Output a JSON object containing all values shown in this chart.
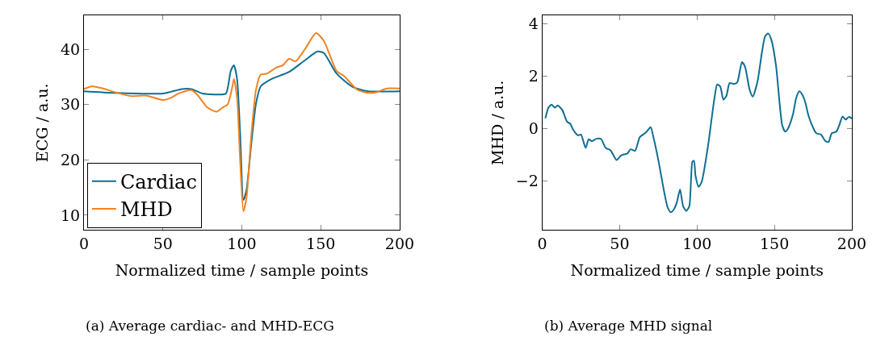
{
  "chart_data": [
    {
      "type": "line",
      "xlabel": "Normalized time / sample points",
      "ylabel": "ECG / a.u.",
      "xlim": [
        0,
        200
      ],
      "ylim": [
        7.3,
        46.1
      ],
      "xticks": [
        0,
        50,
        100,
        150,
        200
      ],
      "yticks": [
        10,
        20,
        30,
        40
      ],
      "legend": "bottom left",
      "annotations": [
        "(a) Average cardiac- and MHD-ECG"
      ],
      "series": [
        {
          "name": "Cardiac",
          "color": "#0f6e94",
          "x": [
            0,
            20,
            50,
            55,
            62,
            68,
            75,
            85,
            90,
            93,
            95,
            97,
            99,
            101,
            103,
            106,
            109,
            112,
            118,
            130,
            140,
            148,
            152,
            160,
            170,
            180,
            200
          ],
          "values": [
            32.4,
            32.1,
            32.0,
            32.3,
            32.8,
            32.8,
            32.0,
            31.8,
            32.0,
            36.1,
            37.1,
            34.6,
            24.4,
            12.7,
            14.6,
            22.9,
            30.2,
            33.3,
            34.5,
            35.9,
            38.0,
            39.6,
            39.3,
            35.6,
            33.2,
            32.4,
            32.4
          ]
        },
        {
          "name": "MHD",
          "color": "#f28322",
          "x": [
            0,
            5,
            12,
            20,
            30,
            35,
            40,
            50,
            55,
            60,
            68,
            72,
            78,
            84,
            88,
            91,
            94,
            95,
            97,
            99,
            101,
            103,
            106,
            109,
            112,
            116,
            122,
            126,
            130,
            134,
            140,
            147,
            152,
            160,
            165,
            173,
            180,
            185,
            192,
            200
          ],
          "values": [
            32.8,
            33.3,
            32.9,
            32.2,
            31.5,
            31.6,
            31.6,
            30.8,
            31.2,
            32.0,
            32.6,
            31.7,
            29.5,
            28.7,
            29.5,
            30.0,
            33.2,
            34.6,
            31.2,
            19.5,
            10.7,
            13.2,
            24.4,
            32.7,
            35.4,
            35.6,
            36.7,
            37.1,
            38.3,
            37.8,
            40.0,
            42.9,
            41.5,
            36.1,
            35.1,
            32.7,
            32.1,
            32.2,
            32.9,
            32.9
          ]
        }
      ]
    },
    {
      "type": "line",
      "xlabel": "Normalized time / sample points",
      "ylabel": "MHD / a.u.",
      "xlim": [
        0,
        200
      ],
      "ylim": [
        -3.87,
        4.31
      ],
      "xticks": [
        0,
        50,
        100,
        150,
        200
      ],
      "yticks": [
        {
          "value": -2,
          "label": "−2"
        },
        0,
        2,
        4
      ],
      "annotations": [
        "(b) Average MHD signal"
      ],
      "series": [
        {
          "color": "#0f6e94",
          "x": [
            2,
            4,
            6,
            8,
            10,
            13,
            16,
            18,
            20,
            23,
            25,
            28,
            30,
            32,
            35,
            38,
            41,
            44,
            48,
            51,
            55,
            57,
            60,
            63,
            67,
            70,
            72,
            75,
            79,
            81,
            83,
            85,
            87,
            89,
            91,
            93,
            95,
            97,
            98,
            99,
            101,
            103,
            107,
            111,
            113,
            115,
            117,
            119,
            121,
            124,
            126,
            129,
            131,
            134,
            136,
            139,
            142,
            144,
            146,
            148,
            151,
            155,
            157,
            159,
            162,
            164,
            166,
            168,
            170,
            172,
            175,
            177,
            180,
            183,
            185,
            187,
            190,
            192,
            194,
            196,
            198,
            200
          ],
          "values": [
            0.39,
            0.8,
            0.91,
            0.8,
            0.88,
            0.7,
            0.26,
            0.19,
            -0.05,
            -0.26,
            -0.23,
            -0.74,
            -0.41,
            -0.48,
            -0.39,
            -0.4,
            -0.74,
            -0.82,
            -1.2,
            -1.02,
            -0.95,
            -0.79,
            -0.85,
            -0.33,
            -0.15,
            0.05,
            -0.38,
            -1.21,
            -2.49,
            -3.01,
            -3.19,
            -3.08,
            -2.8,
            -2.32,
            -2.96,
            -3.14,
            -2.96,
            -1.26,
            -1.23,
            -1.8,
            -2.22,
            -2.03,
            -0.69,
            1.06,
            1.68,
            1.6,
            1.1,
            1.25,
            1.73,
            1.7,
            1.76,
            2.53,
            2.35,
            1.47,
            1.22,
            1.78,
            2.94,
            3.52,
            3.62,
            3.38,
            2.4,
            0.13,
            -0.12,
            0.03,
            0.55,
            1.16,
            1.42,
            1.29,
            0.98,
            0.49,
            0.03,
            -0.18,
            -0.23,
            -0.48,
            -0.51,
            -0.18,
            -0.12,
            0.15,
            0.46,
            0.34,
            0.44,
            0.39
          ]
        }
      ]
    }
  ]
}
